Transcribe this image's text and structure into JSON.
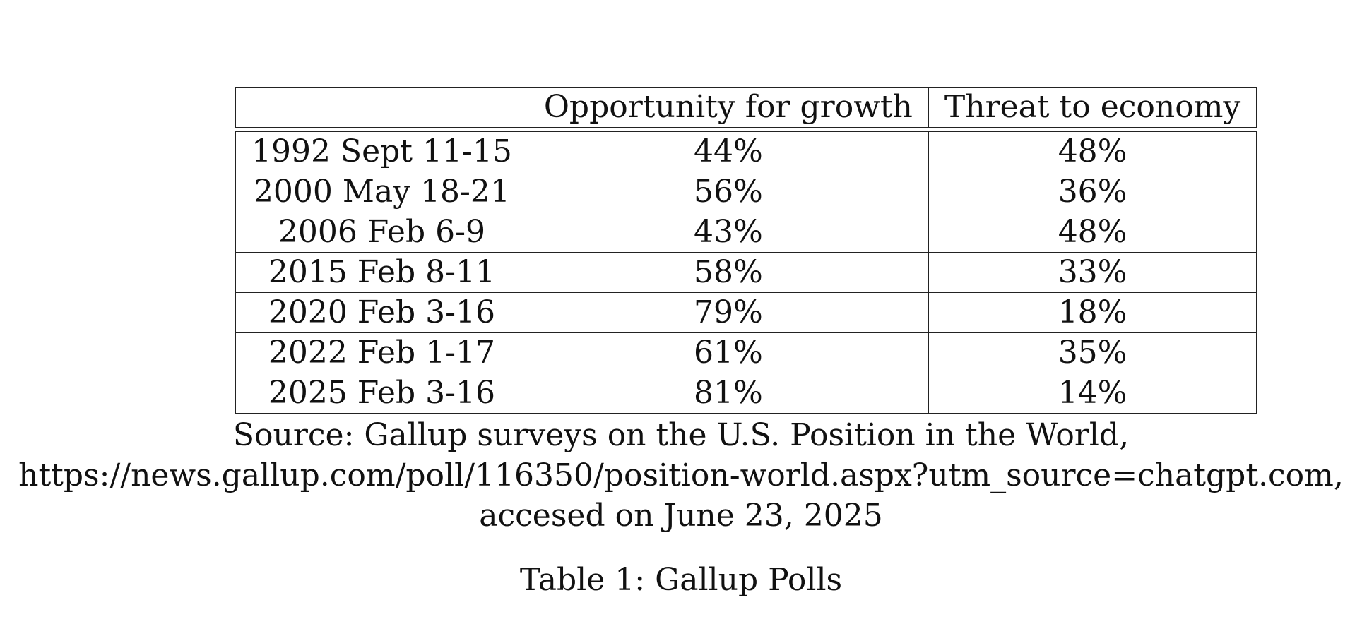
{
  "table": {
    "headers": [
      "",
      "Opportunity for growth",
      "Threat to economy"
    ],
    "rows": [
      [
        "1992 Sept 11-15",
        "44%",
        "48%"
      ],
      [
        "2000 May 18-21",
        "56%",
        "36%"
      ],
      [
        "2006 Feb 6-9",
        "43%",
        "48%"
      ],
      [
        "2015 Feb 8-11",
        "58%",
        "33%"
      ],
      [
        "2020 Feb 3-16",
        "79%",
        "18%"
      ],
      [
        "2022 Feb 1-17",
        "61%",
        "35%"
      ],
      [
        "2025 Feb 3-16",
        "81%",
        "14%"
      ]
    ]
  },
  "source": {
    "line1": "Source: Gallup surveys on the U.S. Position in the World,",
    "line2": "https://news.gallup.com/poll/116350/position-world.aspx?utm_source=chatgpt.com,",
    "line3": "accesed on June 23, 2025"
  },
  "caption": "Table 1: Gallup Polls"
}
